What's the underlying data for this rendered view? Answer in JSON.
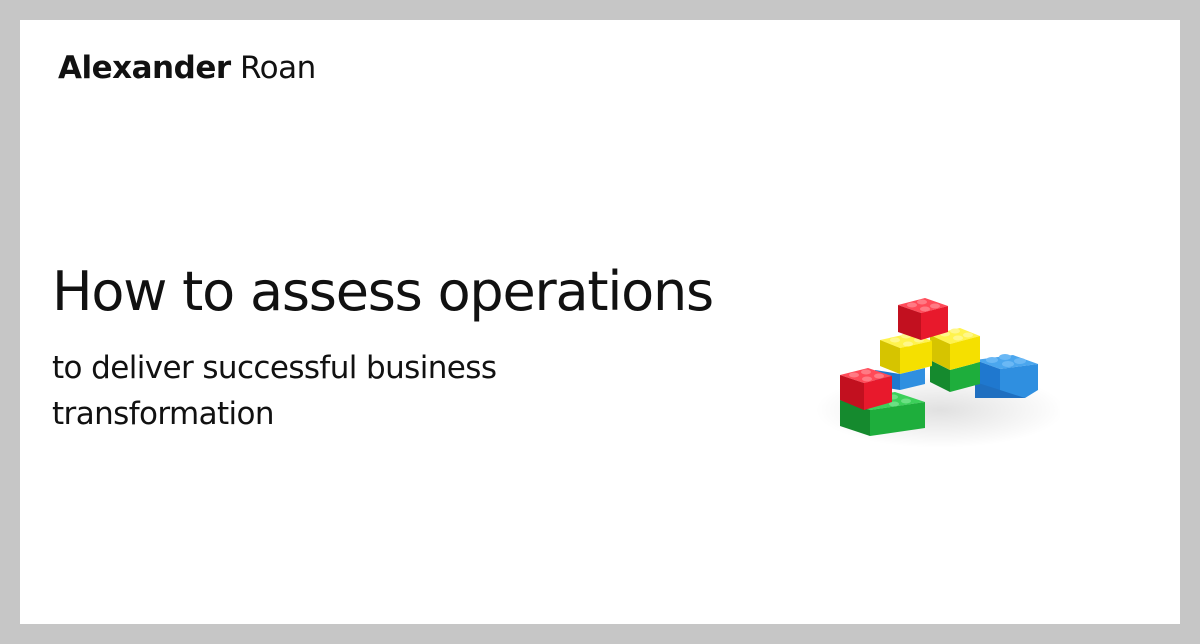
{
  "author": {
    "first_name": "Alexander",
    "last_name": "Roan"
  },
  "headline": "How to assess operations",
  "subtitle": {
    "line1": "to deliver successful business",
    "line2": "transformation"
  },
  "illustration": {
    "name": "toy-building-bricks",
    "colors": {
      "red": "#e8192c",
      "yellow": "#f5e000",
      "green": "#1eae3c",
      "blue": "#2f8fe0"
    }
  }
}
